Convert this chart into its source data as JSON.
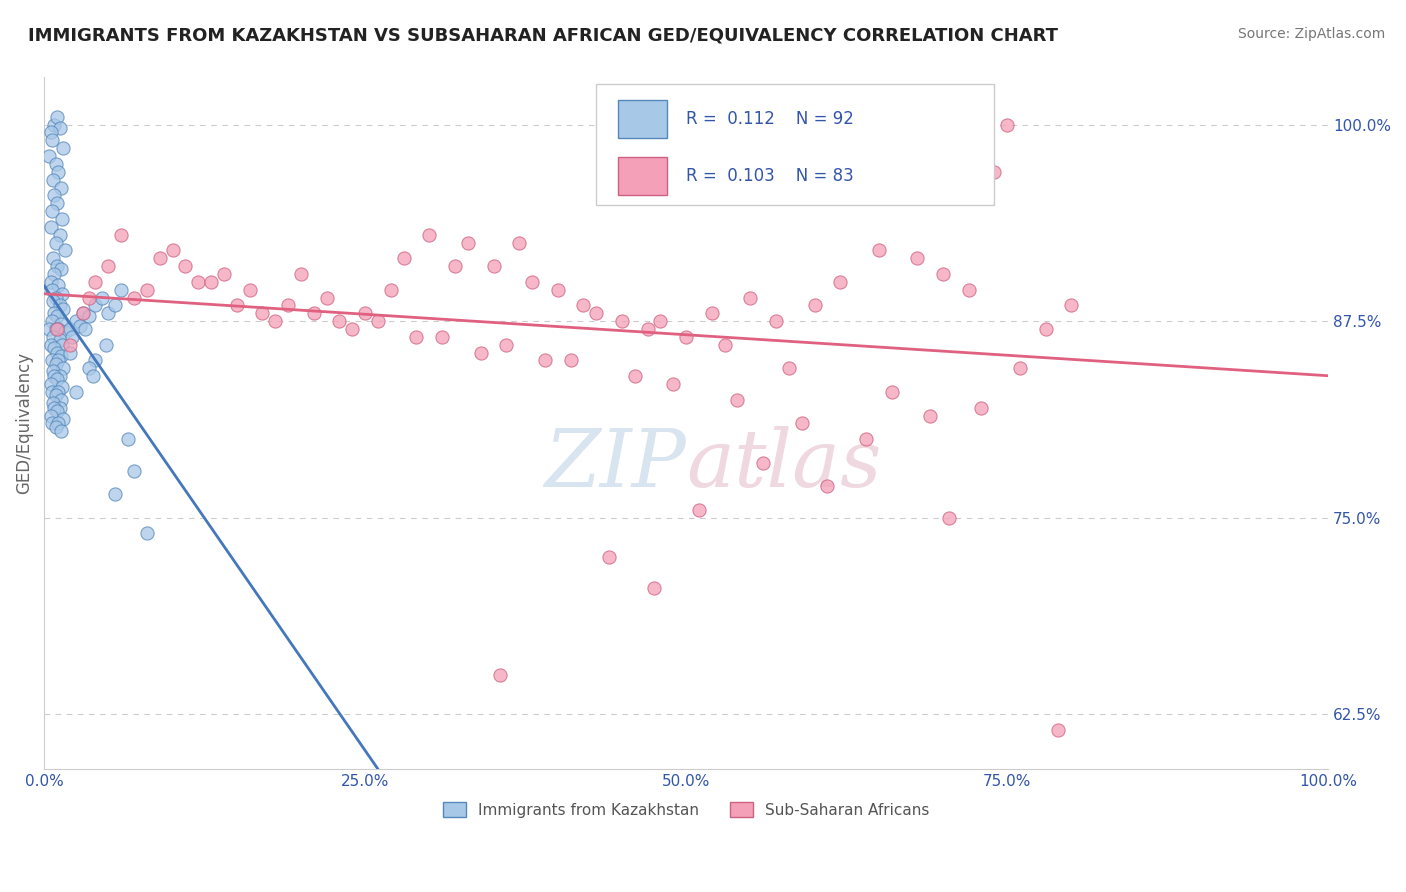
{
  "title": "IMMIGRANTS FROM KAZAKHSTAN VS SUBSAHARAN AFRICAN GED/EQUIVALENCY CORRELATION CHART",
  "source": "Source: ZipAtlas.com",
  "ylabel": "GED/Equivalency",
  "xlim": [
    0.0,
    100.0
  ],
  "ylim": [
    59.0,
    103.0
  ],
  "yticks": [
    62.5,
    75.0,
    87.5,
    100.0
  ],
  "xticks": [
    0.0,
    25.0,
    50.0,
    75.0,
    100.0
  ],
  "blue_R": 0.112,
  "blue_N": 92,
  "pink_R": 0.103,
  "pink_N": 83,
  "blue_color": "#a8c8e8",
  "blue_edge_color": "#5588bb",
  "pink_color": "#f4a0b8",
  "pink_edge_color": "#d06080",
  "blue_line_color": "#4477bb",
  "pink_line_color": "#e06080",
  "axis_label_color": "#3355aa",
  "tick_color": "#3355aa",
  "watermark_color": "#d8e4f0",
  "watermark_pink": "#f0d8e0",
  "grid_color": "#cccccc",
  "background_color": "#ffffff",
  "legend_label_blue": "Immigrants from Kazakhstan",
  "legend_label_pink": "Sub-Saharan Africans",
  "blue_x": [
    0.8,
    1.0,
    1.2,
    0.5,
    0.6,
    1.5,
    0.4,
    0.9,
    1.1,
    0.7,
    1.3,
    0.8,
    1.0,
    0.6,
    1.4,
    0.5,
    1.2,
    0.9,
    1.6,
    0.7,
    1.0,
    1.3,
    0.8,
    0.5,
    1.1,
    0.6,
    1.4,
    0.9,
    0.7,
    1.2,
    1.5,
    0.8,
    1.0,
    0.6,
    1.3,
    1.1,
    0.4,
    0.9,
    1.6,
    0.7,
    1.2,
    0.5,
    1.4,
    0.8,
    1.0,
    1.3,
    0.6,
    1.1,
    0.9,
    1.5,
    0.7,
    1.2,
    0.8,
    1.0,
    0.5,
    1.4,
    0.6,
    1.1,
    0.9,
    1.3,
    0.7,
    1.2,
    0.8,
    1.0,
    0.5,
    1.5,
    0.6,
    1.1,
    0.9,
    1.3,
    2.0,
    2.5,
    3.0,
    2.2,
    2.8,
    3.5,
    4.0,
    3.2,
    4.5,
    2.0,
    5.0,
    5.5,
    6.0,
    4.0,
    3.5,
    4.8,
    2.5,
    3.8,
    6.5,
    7.0,
    5.5,
    8.0
  ],
  "blue_y": [
    100.0,
    100.5,
    99.8,
    99.5,
    99.0,
    98.5,
    98.0,
    97.5,
    97.0,
    96.5,
    96.0,
    95.5,
    95.0,
    94.5,
    94.0,
    93.5,
    93.0,
    92.5,
    92.0,
    91.5,
    91.0,
    90.8,
    90.5,
    90.0,
    89.8,
    89.5,
    89.2,
    89.0,
    88.8,
    88.5,
    88.3,
    88.0,
    87.8,
    87.5,
    87.3,
    87.0,
    87.0,
    87.0,
    86.8,
    86.5,
    86.3,
    86.0,
    86.0,
    85.8,
    85.5,
    85.3,
    85.0,
    85.0,
    84.8,
    84.5,
    84.3,
    84.0,
    84.0,
    83.8,
    83.5,
    83.3,
    83.0,
    83.0,
    82.8,
    82.5,
    82.3,
    82.0,
    82.0,
    81.8,
    81.5,
    81.3,
    81.0,
    81.0,
    80.8,
    80.5,
    87.0,
    87.5,
    88.0,
    86.5,
    87.2,
    87.8,
    88.5,
    87.0,
    89.0,
    85.5,
    88.0,
    88.5,
    89.5,
    85.0,
    84.5,
    86.0,
    83.0,
    84.0,
    80.0,
    78.0,
    76.5,
    74.0
  ],
  "pink_x": [
    1.0,
    3.0,
    5.0,
    8.0,
    10.0,
    12.0,
    15.0,
    18.0,
    20.0,
    22.0,
    25.0,
    28.0,
    30.0,
    33.0,
    35.0,
    38.0,
    40.0,
    42.0,
    45.0,
    47.0,
    50.0,
    52.0,
    55.0,
    57.0,
    60.0,
    62.0,
    65.0,
    68.0,
    70.0,
    72.0,
    75.0,
    78.0,
    80.0,
    4.0,
    7.0,
    11.0,
    14.0,
    17.0,
    23.0,
    27.0,
    32.0,
    37.0,
    43.0,
    48.0,
    53.0,
    58.0,
    63.0,
    67.0,
    71.0,
    74.0,
    2.0,
    6.0,
    9.0,
    13.0,
    16.0,
    21.0,
    26.0,
    29.0,
    34.0,
    36.0,
    41.0,
    46.0,
    49.0,
    54.0,
    59.0,
    64.0,
    69.0,
    73.0,
    51.0,
    44.0,
    39.0,
    31.0,
    24.0,
    19.0,
    66.0,
    76.0,
    3.5,
    56.0,
    61.0,
    70.5,
    79.0,
    47.5,
    35.5
  ],
  "pink_y": [
    87.0,
    88.0,
    91.0,
    89.5,
    92.0,
    90.0,
    88.5,
    87.5,
    90.5,
    89.0,
    88.0,
    91.5,
    93.0,
    92.5,
    91.0,
    90.0,
    89.5,
    88.5,
    87.5,
    87.0,
    86.5,
    88.0,
    89.0,
    87.5,
    88.5,
    90.0,
    92.0,
    91.5,
    90.5,
    89.5,
    100.0,
    87.0,
    88.5,
    90.0,
    89.0,
    91.0,
    90.5,
    88.0,
    87.5,
    89.5,
    91.0,
    92.5,
    88.0,
    87.5,
    86.0,
    84.5,
    100.0,
    100.0,
    100.0,
    97.0,
    86.0,
    93.0,
    91.5,
    90.0,
    89.5,
    88.0,
    87.5,
    86.5,
    85.5,
    86.0,
    85.0,
    84.0,
    83.5,
    82.5,
    81.0,
    80.0,
    81.5,
    82.0,
    75.5,
    72.5,
    85.0,
    86.5,
    87.0,
    88.5,
    83.0,
    84.5,
    89.0,
    78.5,
    77.0,
    75.0,
    61.5,
    70.5,
    65.0
  ],
  "pink_line_start_y": 85.5,
  "pink_line_end_y": 87.5
}
